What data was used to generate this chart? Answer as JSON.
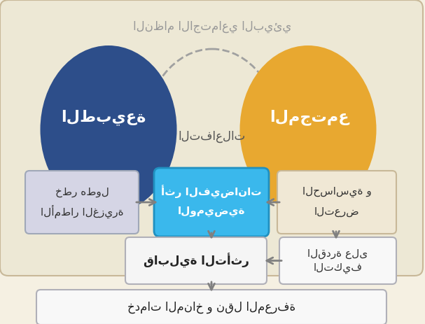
{
  "bg_color": "#f5f0e2",
  "outer_rect_color": "#ede8d5",
  "outer_rect_edge": "#c8b898",
  "title_text": "النظام الاجتماعي البيئي",
  "nature_circle_color": "#2d4e8a",
  "nature_text": "الطبيعة",
  "society_circle_color": "#e8a830",
  "society_text": "المجتمع",
  "interactions_text": "التفاعلات",
  "center_box_color": "#3ab8ec",
  "center_box_edge": "#2090c0",
  "center_box_text_line1": "أثر الفيضانات",
  "center_box_text_line2": "الوميضية",
  "left_box_color": "#d5d5e5",
  "left_box_edge": "#a0a8b8",
  "left_box_text_line1": "خطر هطول",
  "left_box_text_line2": "الأمطار الغزيرة",
  "right_box_color": "#f0e8d5",
  "right_box_edge": "#c8b898",
  "right_box_text_line1": "الحساسية و",
  "right_box_text_line2": "التعرض",
  "vuln_box_color": "#f5f5f5",
  "vuln_box_edge": "#b0b0b8",
  "vuln_box_text": "قابلية التأثر",
  "adapt_box_color": "#f8f8f8",
  "adapt_box_edge": "#b0b0b8",
  "adapt_box_text_line1": "القدرة على",
  "adapt_box_text_line2": "التكيف",
  "bottom_box_color": "#f8f8f8",
  "bottom_box_edge": "#b0b0b8",
  "bottom_box_text": "خدمات المناخ و نقل المعرفة",
  "arrow_color": "#808080",
  "dashed_color": "#a0a0a0"
}
